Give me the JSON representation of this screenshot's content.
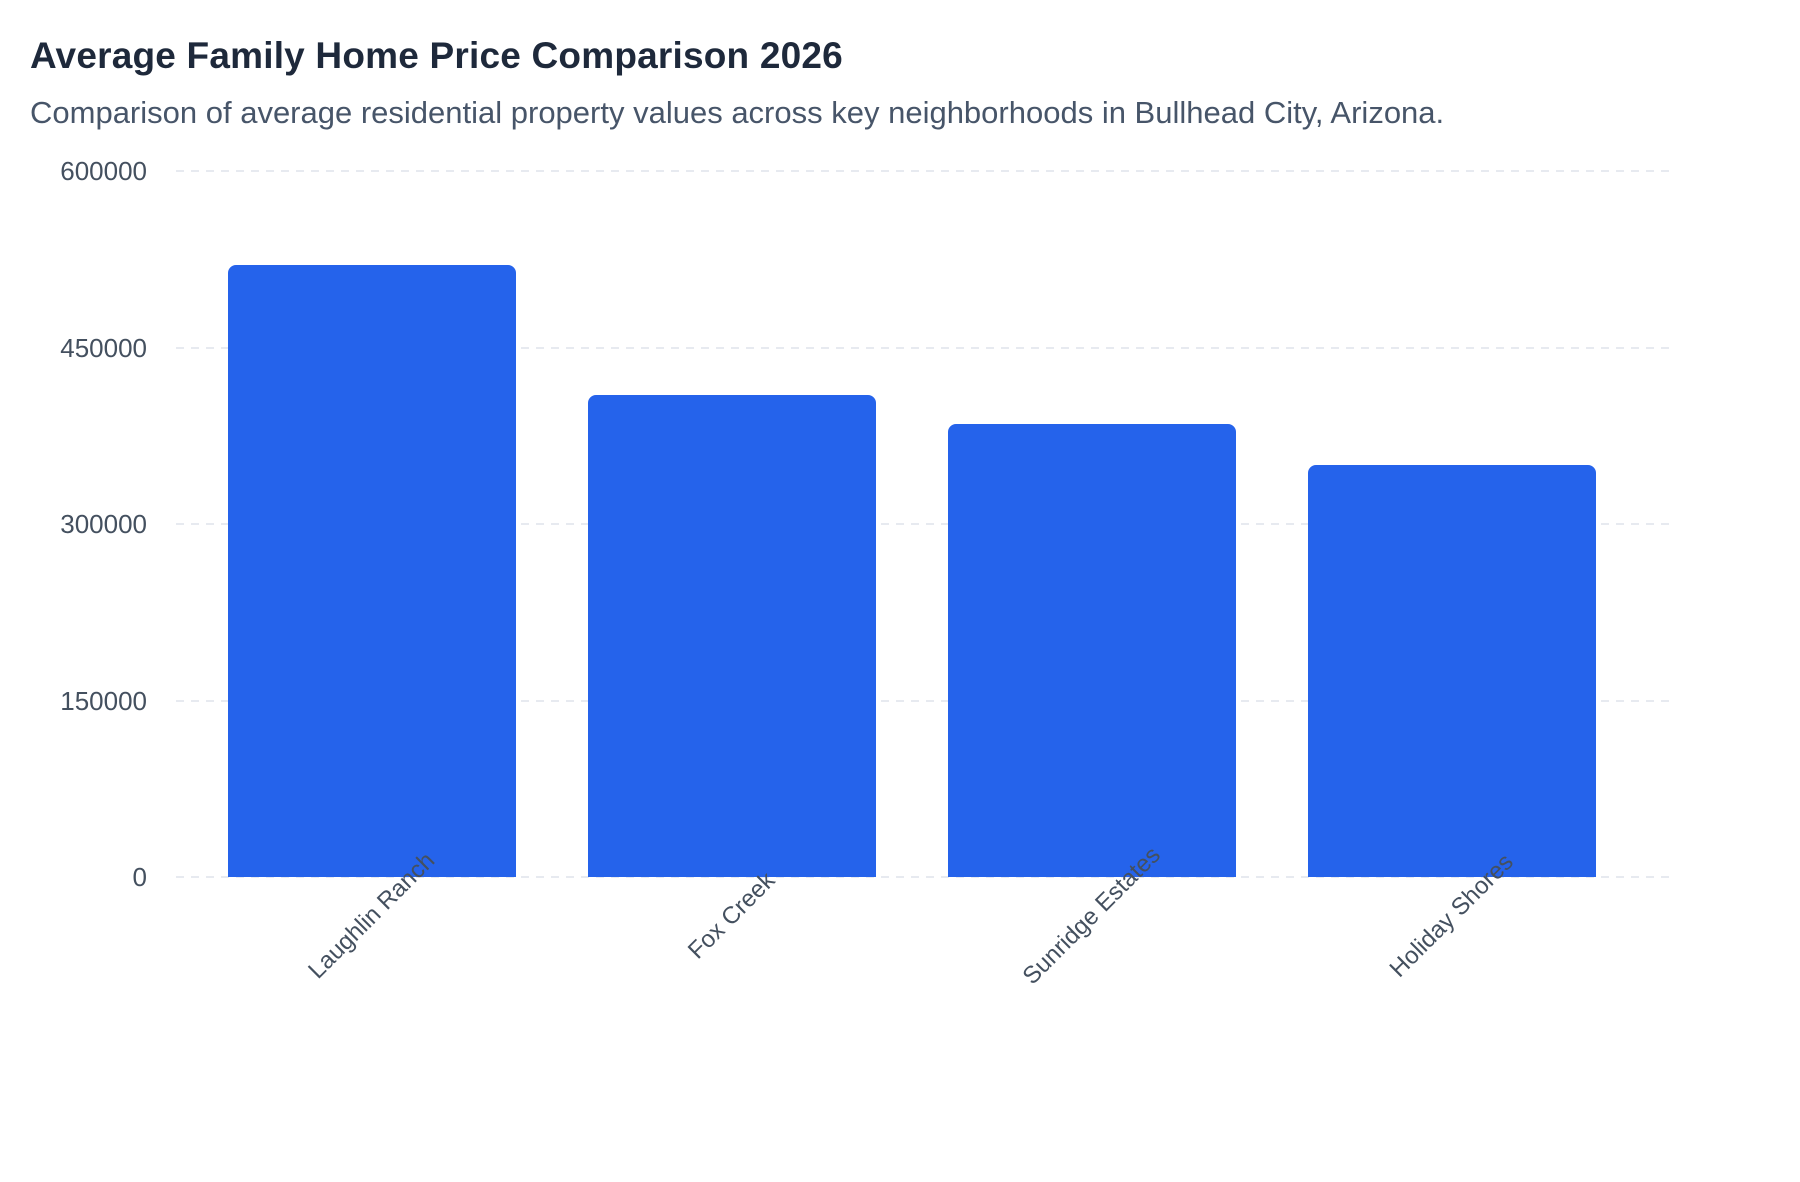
{
  "header": {
    "title": "Average Family Home Price Comparison 2026",
    "subtitle": "Comparison of average residential property values across key neighborhoods in Bullhead City, Arizona."
  },
  "chart_data": {
    "type": "bar",
    "title": "Average Family Home Price Comparison 2026",
    "subtitle": "Comparison of average residential property values across key neighborhoods in Bullhead City, Arizona.",
    "categories": [
      "Laughlin Ranch",
      "Fox Creek",
      "Sunridge Estates",
      "Holiday Shores"
    ],
    "values": [
      520000,
      410000,
      385000,
      350000
    ],
    "xlabel": "",
    "ylabel": "",
    "ylim": [
      0,
      600000
    ],
    "yticks": [
      0,
      150000,
      300000,
      450000,
      600000
    ],
    "ytick_labels": [
      "0",
      "150000",
      "300000",
      "450000",
      "600000"
    ],
    "xtick_rotation_degrees": -45,
    "grid": "horizontal-dashed",
    "legend": "none",
    "bar_color": "#2563eb",
    "background_color": "#ffffff",
    "title_color": "#1e293b",
    "subtitle_color": "#475569",
    "axis_label_color": "#44505f",
    "gridline_color": "#e7eaf0"
  }
}
